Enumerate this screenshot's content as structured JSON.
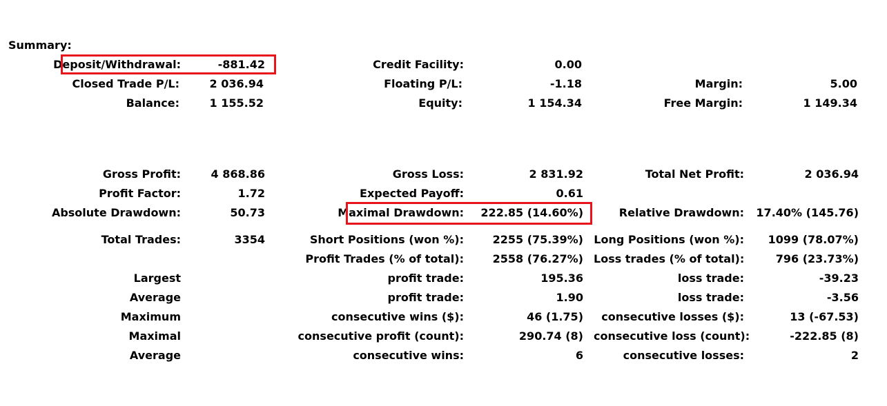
{
  "summary": {
    "title": "Summary:",
    "deposit_withdrawal": {
      "label": "Deposit/Withdrawal:",
      "value": "-881.42"
    },
    "credit_facility": {
      "label": "Credit Facility:",
      "value": "0.00"
    },
    "closed_trade_pl": {
      "label": "Closed Trade P/L:",
      "value": "2 036.94"
    },
    "floating_pl": {
      "label": "Floating P/L:",
      "value": "-1.18"
    },
    "margin": {
      "label": "Margin:",
      "value": "5.00"
    },
    "balance": {
      "label": "Balance:",
      "value": "1 155.52"
    },
    "equity": {
      "label": "Equity:",
      "value": "1 154.34"
    },
    "free_margin": {
      "label": "Free Margin:",
      "value": "1 149.34"
    }
  },
  "stats": {
    "gross_profit": {
      "label": "Gross Profit:",
      "value": "4 868.86"
    },
    "gross_loss": {
      "label": "Gross Loss:",
      "value": "2 831.92"
    },
    "total_net_profit": {
      "label": "Total Net Profit:",
      "value": "2 036.94"
    },
    "profit_factor": {
      "label": "Profit Factor:",
      "value": "1.72"
    },
    "expected_payoff": {
      "label": "Expected Payoff:",
      "value": "0.61"
    },
    "absolute_drawdown": {
      "label": "Absolute Drawdown:",
      "value": "50.73"
    },
    "maximal_drawdown": {
      "label": "Maximal Drawdown:",
      "value": "222.85 (14.60%)"
    },
    "relative_drawdown": {
      "label": "Relative Drawdown:",
      "value": "17.40% (145.76)"
    },
    "total_trades": {
      "label": "Total Trades:",
      "value": "3354"
    },
    "short_positions": {
      "label": "Short Positions (won %):",
      "value": "2255 (75.39%)"
    },
    "long_positions": {
      "label": "Long Positions (won %):",
      "value": "1099 (78.07%)"
    },
    "profit_trades": {
      "label": "Profit Trades (% of total):",
      "value": "2558 (76.27%)"
    },
    "loss_trades": {
      "label": "Loss trades (% of total):",
      "value": "796 (23.73%)"
    }
  },
  "extremes": {
    "largest": {
      "label": "Largest",
      "profit_label": "profit trade:",
      "profit_value": "195.36",
      "loss_label": "loss trade:",
      "loss_value": "-39.23"
    },
    "average": {
      "label": "Average",
      "profit_label": "profit trade:",
      "profit_value": "1.90",
      "loss_label": "loss trade:",
      "loss_value": "-3.56"
    },
    "maximum": {
      "label": "Maximum",
      "profit_label": "consecutive wins ($):",
      "profit_value": "46 (1.75)",
      "loss_label": "consecutive losses ($):",
      "loss_value": "13 (-67.53)"
    },
    "maximal": {
      "label": "Maximal",
      "profit_label": "consecutive profit (count):",
      "profit_value": "290.74 (8)",
      "loss_label": "consecutive loss (count):",
      "loss_value": "-222.85 (8)"
    },
    "average_consecutive": {
      "label": "Average",
      "profit_label": "consecutive wins:",
      "profit_value": "6",
      "loss_label": "consecutive losses:",
      "loss_value": "2"
    }
  },
  "colors": {
    "highlight_border": "#e8141c"
  }
}
